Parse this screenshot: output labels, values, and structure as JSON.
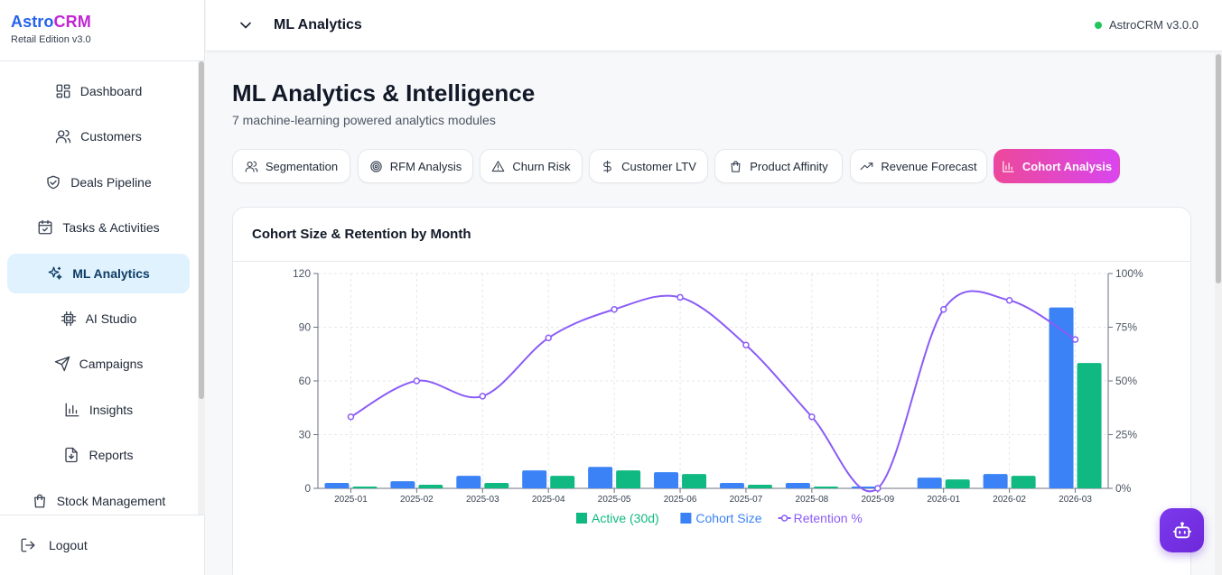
{
  "brand": {
    "name_part1": "Astro",
    "name_part2": "CRM",
    "edition": "Retail Edition v3.0"
  },
  "sidebar": {
    "items": [
      {
        "label": "Dashboard",
        "icon": "dashboard-icon",
        "active": false
      },
      {
        "label": "Customers",
        "icon": "users-icon",
        "active": false
      },
      {
        "label": "Deals Pipeline",
        "icon": "handshake-icon",
        "active": false
      },
      {
        "label": "Tasks & Activities",
        "icon": "calendar-check-icon",
        "active": false
      },
      {
        "label": "ML Analytics",
        "icon": "sparkles-icon",
        "active": true
      },
      {
        "label": "AI Studio",
        "icon": "chip-icon",
        "active": false
      },
      {
        "label": "Campaigns",
        "icon": "send-icon",
        "active": false
      },
      {
        "label": "Insights",
        "icon": "bar-chart-icon",
        "active": false
      },
      {
        "label": "Reports",
        "icon": "file-download-icon",
        "active": false
      },
      {
        "label": "Stock Management",
        "icon": "shopping-bag-icon",
        "active": false
      }
    ],
    "logout_label": "Logout"
  },
  "header": {
    "title": "ML Analytics",
    "version": "AstroCRM v3.0.0",
    "status_color": "#22c55e"
  },
  "page": {
    "title": "ML Analytics & Intelligence",
    "subtitle": "7 machine-learning powered analytics modules",
    "tabs": [
      {
        "label": "Segmentation",
        "icon": "users-icon",
        "active": false
      },
      {
        "label": "RFM Analysis",
        "icon": "target-icon",
        "active": false
      },
      {
        "label": "Churn Risk",
        "icon": "alert-triangle-icon",
        "active": false
      },
      {
        "label": "Customer LTV",
        "icon": "dollar-icon",
        "active": false
      },
      {
        "label": "Product Affinity",
        "icon": "shopping-bag-icon",
        "active": false
      },
      {
        "label": "Revenue Forecast",
        "icon": "trending-up-icon",
        "active": false
      },
      {
        "label": "Cohort Analysis",
        "icon": "bar-chart-icon",
        "active": true
      }
    ]
  },
  "card": {
    "title": "Cohort Size & Retention by Month"
  },
  "chart_data": {
    "type": "bar",
    "categories": [
      "2025-01",
      "2025-02",
      "2025-03",
      "2025-04",
      "2025-05",
      "2025-06",
      "2025-07",
      "2025-08",
      "2025-09",
      "2026-01",
      "2026-02",
      "2026-03"
    ],
    "series": [
      {
        "name": "Cohort Size",
        "type": "bar",
        "axis": "left",
        "color": "#3b82f6",
        "values": [
          3,
          4,
          7,
          10,
          12,
          9,
          3,
          3,
          1,
          6,
          8,
          101
        ]
      },
      {
        "name": "Active (30d)",
        "type": "bar",
        "axis": "left",
        "color": "#10b981",
        "values": [
          1,
          2,
          3,
          7,
          10,
          8,
          2,
          1,
          0,
          5,
          7,
          70
        ]
      },
      {
        "name": "Retention %",
        "type": "line",
        "axis": "right",
        "color": "#8b5cf6",
        "values": [
          33.3,
          50,
          42.9,
          70,
          83.3,
          88.9,
          66.7,
          33.3,
          0,
          83.3,
          87.5,
          69.3
        ]
      }
    ],
    "left_axis": {
      "min": 0,
      "max": 120,
      "ticks": [
        "0",
        "30",
        "60",
        "90",
        "120"
      ]
    },
    "right_axis": {
      "min": 0,
      "max": 100,
      "ticks": [
        "0%",
        "25%",
        "50%",
        "75%",
        "100%"
      ]
    },
    "legend": [
      "Active (30d)",
      "Cohort Size",
      "Retention %"
    ],
    "legend_position": "bottom",
    "grid": true
  }
}
